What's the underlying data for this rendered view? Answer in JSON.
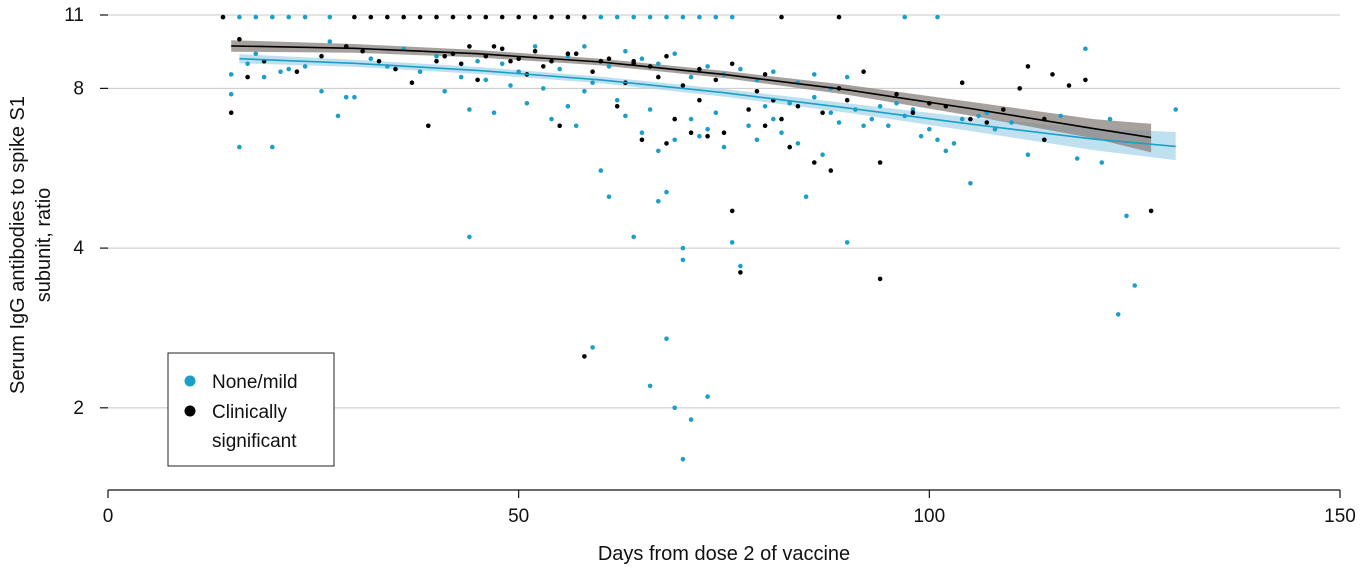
{
  "chart_data": {
    "type": "scatter",
    "title": "",
    "xlabel": "Days from dose 2 of vaccine",
    "ylabel_lines": [
      "Serum IgG antibodies to spike S1",
      "subunit, ratio"
    ],
    "x_range": [
      0,
      150
    ],
    "y_range": [
      1.4,
      11
    ],
    "y_scale": "log",
    "x_ticks": [
      {
        "value": 0,
        "label": "0"
      },
      {
        "value": 50,
        "label": "50"
      },
      {
        "value": 100,
        "label": "100"
      },
      {
        "value": 150,
        "label": "150"
      }
    ],
    "y_ticks": [
      {
        "value": 2,
        "label": "2"
      },
      {
        "value": 4,
        "label": "4"
      },
      {
        "value": 8,
        "label": "8"
      },
      {
        "value": 11,
        "label": "11"
      }
    ],
    "grid": "horizontal",
    "legend": {
      "position": "bottom-left",
      "entries": [
        {
          "label_lines": [
            "None/mild"
          ],
          "color": "#1a9fc7"
        },
        {
          "label_lines": [
            "Clinically",
            "significant"
          ],
          "color": "#000000"
        }
      ]
    },
    "series": [
      {
        "name": "None/mild",
        "color": "#1a9fc7",
        "band_color": "#a9d6ea",
        "points": [
          [
            14,
            10.9
          ],
          [
            16,
            10.9
          ],
          [
            18,
            10.9
          ],
          [
            20,
            10.9
          ],
          [
            22,
            10.9
          ],
          [
            24,
            10.9
          ],
          [
            27,
            10.9
          ],
          [
            15,
            8.5
          ],
          [
            15,
            7.8
          ],
          [
            16,
            6.2
          ],
          [
            17,
            8.9
          ],
          [
            18,
            9.3
          ],
          [
            19,
            8.4
          ],
          [
            20,
            6.2
          ],
          [
            21,
            8.6
          ],
          [
            22,
            8.7
          ],
          [
            24,
            8.8
          ],
          [
            26,
            7.9
          ],
          [
            27,
            9.8
          ],
          [
            28,
            7.1
          ],
          [
            29,
            7.7
          ],
          [
            30,
            7.7
          ],
          [
            32,
            9.1
          ],
          [
            34,
            8.8
          ],
          [
            36,
            9.5
          ],
          [
            38,
            8.6
          ],
          [
            40,
            9.2
          ],
          [
            41,
            7.9
          ],
          [
            43,
            8.4
          ],
          [
            44,
            7.3
          ],
          [
            45,
            9.0
          ],
          [
            46,
            8.3
          ],
          [
            47,
            7.2
          ],
          [
            48,
            8.9
          ],
          [
            49,
            8.1
          ],
          [
            50,
            8.6
          ],
          [
            51,
            7.5
          ],
          [
            52,
            9.6
          ],
          [
            53,
            8.0
          ],
          [
            54,
            7.0
          ],
          [
            55,
            8.7
          ],
          [
            56,
            7.4
          ],
          [
            57,
            6.8
          ],
          [
            58,
            7.9
          ],
          [
            59,
            8.2
          ],
          [
            60,
            5.6
          ],
          [
            61,
            5.0
          ],
          [
            62,
            7.6
          ],
          [
            63,
            7.1
          ],
          [
            64,
            4.2
          ],
          [
            65,
            6.6
          ],
          [
            66,
            7.3
          ],
          [
            67,
            6.1
          ],
          [
            68,
            5.1
          ],
          [
            69,
            6.4
          ],
          [
            70,
            4.0
          ],
          [
            70,
            3.8
          ],
          [
            71,
            7.0
          ],
          [
            72,
            6.5
          ],
          [
            73,
            6.7
          ],
          [
            74,
            7.2
          ],
          [
            75,
            6.2
          ],
          [
            76,
            4.1
          ],
          [
            77,
            3.7
          ],
          [
            78,
            6.8
          ],
          [
            79,
            6.4
          ],
          [
            80,
            7.4
          ],
          [
            81,
            7.0
          ],
          [
            82,
            6.6
          ],
          [
            83,
            7.5
          ],
          [
            84,
            6.3
          ],
          [
            85,
            5.0
          ],
          [
            86,
            7.7
          ],
          [
            87,
            6.0
          ],
          [
            88,
            7.2
          ],
          [
            89,
            6.9
          ],
          [
            90,
            4.1
          ],
          [
            91,
            7.3
          ],
          [
            92,
            6.8
          ],
          [
            93,
            7.0
          ],
          [
            94,
            7.4
          ],
          [
            95,
            6.8
          ],
          [
            96,
            7.5
          ],
          [
            97,
            7.1
          ],
          [
            98,
            7.3
          ],
          [
            99,
            6.5
          ],
          [
            100,
            6.7
          ],
          [
            101,
            6.4
          ],
          [
            102,
            6.1
          ],
          [
            103,
            6.3
          ],
          [
            104,
            7.0
          ],
          [
            105,
            5.3
          ],
          [
            106,
            7.1
          ],
          [
            107,
            7.2
          ],
          [
            108,
            6.7
          ],
          [
            110,
            6.9
          ],
          [
            112,
            6.0
          ],
          [
            114,
            7.0
          ],
          [
            116,
            7.1
          ],
          [
            118,
            5.9
          ],
          [
            119,
            9.5
          ],
          [
            121,
            5.8
          ],
          [
            122,
            7.0
          ],
          [
            124,
            4.6
          ],
          [
            125,
            3.4
          ],
          [
            123,
            3.0
          ],
          [
            130,
            7.3
          ],
          [
            44,
            4.2
          ],
          [
            59,
            2.6
          ],
          [
            66,
            2.2
          ],
          [
            68,
            2.7
          ],
          [
            69,
            2.0
          ],
          [
            70,
            1.6
          ],
          [
            71,
            1.9
          ],
          [
            73,
            2.1
          ],
          [
            67,
            4.9
          ],
          [
            60,
            10.9
          ],
          [
            62,
            10.9
          ],
          [
            64,
            10.9
          ],
          [
            66,
            10.9
          ],
          [
            68,
            10.9
          ],
          [
            70,
            10.9
          ],
          [
            72,
            10.9
          ],
          [
            74,
            10.9
          ],
          [
            76,
            10.9
          ],
          [
            97,
            10.9
          ],
          [
            101,
            10.9
          ],
          [
            56,
            9.2
          ],
          [
            58,
            9.6
          ],
          [
            61,
            8.8
          ],
          [
            63,
            9.4
          ],
          [
            65,
            9.1
          ],
          [
            67,
            8.9
          ],
          [
            69,
            9.3
          ],
          [
            71,
            8.4
          ],
          [
            73,
            8.8
          ],
          [
            75,
            8.5
          ],
          [
            77,
            8.7
          ],
          [
            79,
            8.3
          ],
          [
            81,
            8.6
          ],
          [
            84,
            8.2
          ],
          [
            86,
            8.5
          ],
          [
            88,
            8.0
          ],
          [
            90,
            8.4
          ]
        ],
        "fit": [
          [
            16,
            9.1
          ],
          [
            30,
            8.92
          ],
          [
            45,
            8.65
          ],
          [
            60,
            8.3
          ],
          [
            75,
            7.85
          ],
          [
            90,
            7.35
          ],
          [
            105,
            6.85
          ],
          [
            120,
            6.42
          ],
          [
            130,
            6.22
          ]
        ],
        "band_upper": [
          [
            16,
            9.28
          ],
          [
            30,
            9.06
          ],
          [
            45,
            8.78
          ],
          [
            60,
            8.42
          ],
          [
            75,
            7.98
          ],
          [
            90,
            7.5
          ],
          [
            105,
            7.05
          ],
          [
            120,
            6.72
          ],
          [
            130,
            6.62
          ]
        ],
        "band_lower": [
          [
            16,
            8.92
          ],
          [
            30,
            8.78
          ],
          [
            45,
            8.52
          ],
          [
            60,
            8.18
          ],
          [
            75,
            7.72
          ],
          [
            90,
            7.2
          ],
          [
            105,
            6.65
          ],
          [
            120,
            6.12
          ],
          [
            130,
            5.86
          ]
        ]
      },
      {
        "name": "Clinically significant",
        "color": "#000000",
        "band_color": "#8a827d",
        "points": [
          [
            14,
            10.9
          ],
          [
            30,
            10.9
          ],
          [
            32,
            10.9
          ],
          [
            34,
            10.9
          ],
          [
            36,
            10.9
          ],
          [
            38,
            10.9
          ],
          [
            40,
            10.9
          ],
          [
            42,
            10.9
          ],
          [
            44,
            10.9
          ],
          [
            46,
            10.9
          ],
          [
            48,
            10.9
          ],
          [
            50,
            10.9
          ],
          [
            52,
            10.9
          ],
          [
            54,
            10.9
          ],
          [
            56,
            10.9
          ],
          [
            58,
            10.9
          ],
          [
            82,
            10.9
          ],
          [
            89,
            10.9
          ],
          [
            15,
            7.2
          ],
          [
            16,
            9.9
          ],
          [
            17,
            8.4
          ],
          [
            19,
            9.0
          ],
          [
            23,
            8.6
          ],
          [
            26,
            9.2
          ],
          [
            29,
            9.6
          ],
          [
            31,
            9.4
          ],
          [
            33,
            9.0
          ],
          [
            35,
            8.7
          ],
          [
            37,
            8.2
          ],
          [
            39,
            6.8
          ],
          [
            41,
            9.2
          ],
          [
            43,
            8.9
          ],
          [
            45,
            8.3
          ],
          [
            47,
            9.6
          ],
          [
            49,
            9.0
          ],
          [
            51,
            8.5
          ],
          [
            53,
            8.8
          ],
          [
            55,
            6.8
          ],
          [
            57,
            9.3
          ],
          [
            59,
            8.6
          ],
          [
            61,
            9.1
          ],
          [
            62,
            7.4
          ],
          [
            63,
            8.2
          ],
          [
            64,
            9.0
          ],
          [
            65,
            6.4
          ],
          [
            66,
            8.8
          ],
          [
            67,
            8.4
          ],
          [
            68,
            6.3
          ],
          [
            69,
            7.0
          ],
          [
            70,
            8.1
          ],
          [
            71,
            6.6
          ],
          [
            72,
            7.6
          ],
          [
            73,
            6.5
          ],
          [
            74,
            8.3
          ],
          [
            75,
            6.6
          ],
          [
            76,
            4.7
          ],
          [
            77,
            3.6
          ],
          [
            78,
            7.3
          ],
          [
            79,
            7.9
          ],
          [
            80,
            6.8
          ],
          [
            81,
            7.6
          ],
          [
            82,
            7.0
          ],
          [
            83,
            6.2
          ],
          [
            84,
            7.4
          ],
          [
            86,
            5.8
          ],
          [
            87,
            7.2
          ],
          [
            88,
            5.6
          ],
          [
            89,
            8.0
          ],
          [
            90,
            7.6
          ],
          [
            92,
            8.6
          ],
          [
            94,
            5.8
          ],
          [
            94,
            3.5
          ],
          [
            96,
            7.8
          ],
          [
            98,
            7.2
          ],
          [
            100,
            7.5
          ],
          [
            102,
            7.4
          ],
          [
            104,
            8.2
          ],
          [
            105,
            7.0
          ],
          [
            107,
            6.9
          ],
          [
            109,
            7.3
          ],
          [
            111,
            8.0
          ],
          [
            112,
            8.8
          ],
          [
            114,
            7.0
          ],
          [
            115,
            8.5
          ],
          [
            117,
            8.1
          ],
          [
            119,
            8.3
          ],
          [
            114,
            6.4
          ],
          [
            127,
            4.7
          ],
          [
            58,
            2.5
          ],
          [
            40,
            9.0
          ],
          [
            42,
            9.3
          ],
          [
            44,
            9.6
          ],
          [
            46,
            9.2
          ],
          [
            48,
            9.5
          ],
          [
            50,
            9.1
          ],
          [
            52,
            9.4
          ],
          [
            54,
            9.0
          ],
          [
            56,
            9.3
          ],
          [
            60,
            9.0
          ],
          [
            64,
            8.9
          ],
          [
            68,
            9.2
          ],
          [
            72,
            8.7
          ],
          [
            76,
            8.9
          ],
          [
            80,
            8.5
          ]
        ],
        "fit": [
          [
            15,
            9.62
          ],
          [
            30,
            9.52
          ],
          [
            45,
            9.3
          ],
          [
            60,
            8.97
          ],
          [
            75,
            8.5
          ],
          [
            90,
            7.95
          ],
          [
            105,
            7.33
          ],
          [
            120,
            6.72
          ],
          [
            127,
            6.46
          ]
        ],
        "band_upper": [
          [
            15,
            9.86
          ],
          [
            30,
            9.7
          ],
          [
            45,
            9.45
          ],
          [
            60,
            9.1
          ],
          [
            75,
            8.63
          ],
          [
            90,
            8.12
          ],
          [
            105,
            7.55
          ],
          [
            120,
            7.0
          ],
          [
            127,
            6.86
          ]
        ],
        "band_lower": [
          [
            15,
            9.38
          ],
          [
            30,
            9.34
          ],
          [
            45,
            9.15
          ],
          [
            60,
            8.84
          ],
          [
            75,
            8.37
          ],
          [
            90,
            7.78
          ],
          [
            105,
            7.11
          ],
          [
            120,
            6.44
          ],
          [
            127,
            6.06
          ]
        ]
      }
    ]
  }
}
